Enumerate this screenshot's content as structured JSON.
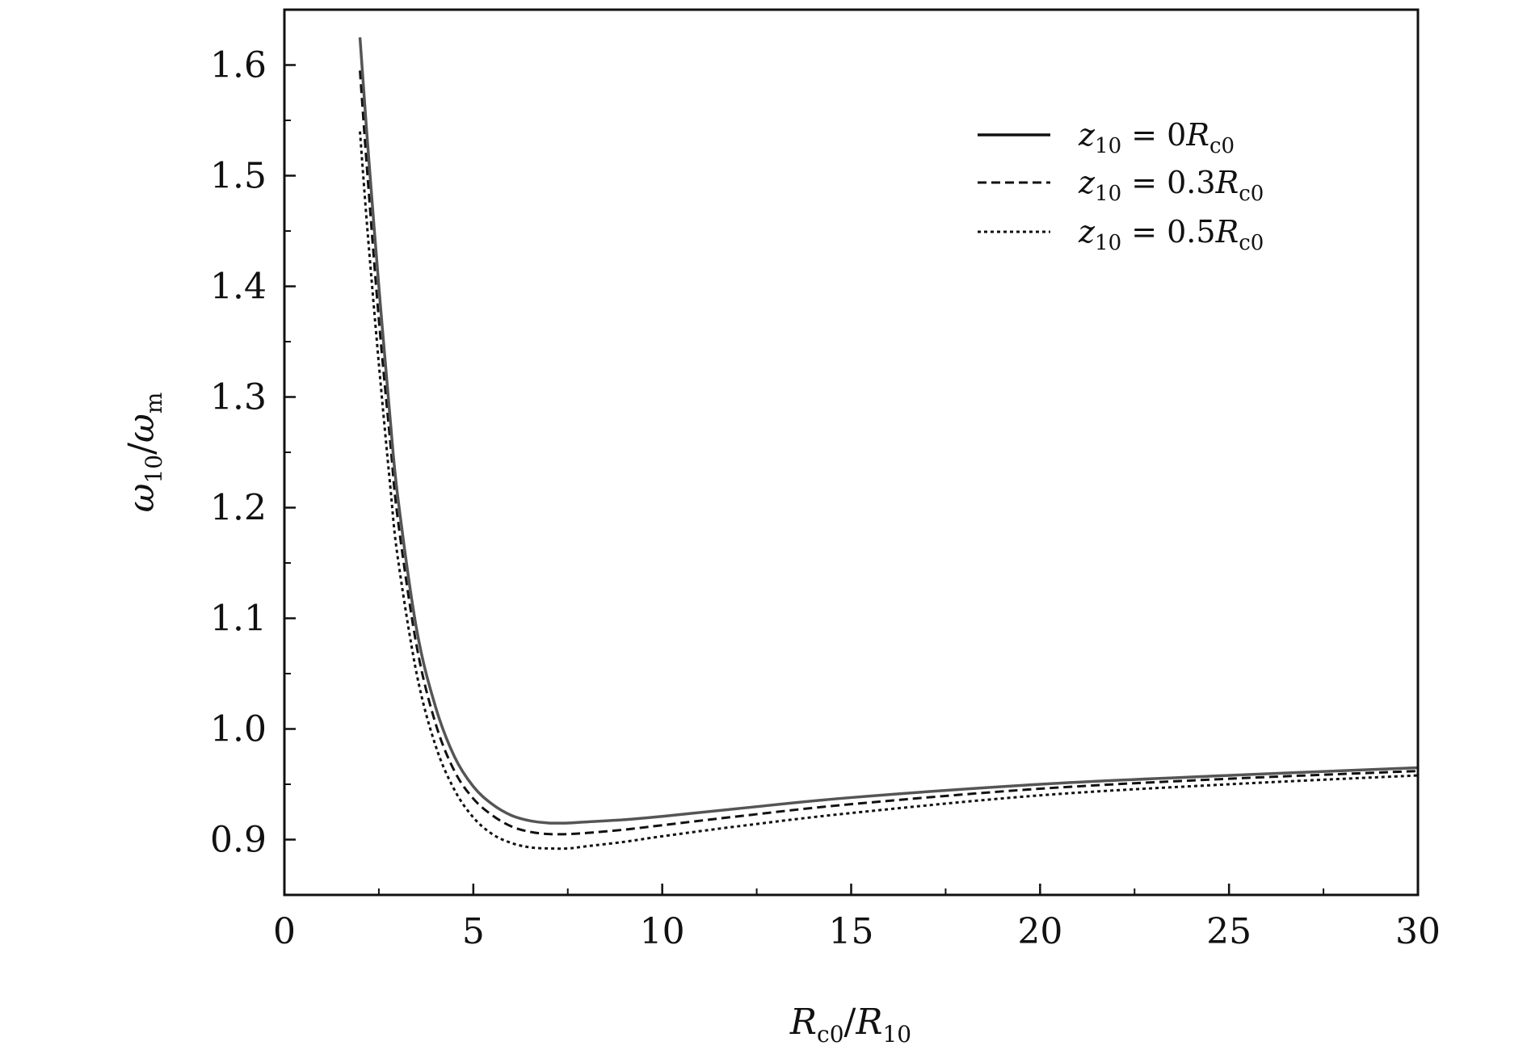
{
  "chart_data": {
    "type": "line",
    "title": "",
    "xlabel": "R_c0/R_10",
    "ylabel": "ω_10/ω_m",
    "xlim": [
      0,
      30
    ],
    "ylim": [
      0.85,
      1.65
    ],
    "x_ticks": [
      0,
      5,
      10,
      15,
      20,
      25,
      30
    ],
    "y_ticks": [
      0.9,
      1.0,
      1.1,
      1.2,
      1.3,
      1.4,
      1.5,
      1.6
    ],
    "x_tick_labels": [
      "0",
      "5",
      "10",
      "15",
      "20",
      "25",
      "30"
    ],
    "y_tick_labels": [
      "0.9",
      "1.0",
      "1.1",
      "1.2",
      "1.3",
      "1.4",
      "1.5",
      "1.6"
    ],
    "grid": false,
    "legend_position": "top-right",
    "colors": {
      "solid": "#555555",
      "dashed": "#111111",
      "dotted": "#111111"
    },
    "series": [
      {
        "name": "z_10 = 0R_c0",
        "line_style": "solid",
        "x": [
          2,
          2.2,
          2.5,
          2.8,
          3,
          3.5,
          4,
          4.5,
          5,
          5.5,
          6,
          6.5,
          7,
          7.5,
          8,
          9,
          10,
          12,
          15,
          20,
          25,
          30
        ],
        "y": [
          1.625,
          1.53,
          1.4,
          1.28,
          1.21,
          1.09,
          1.02,
          0.975,
          0.948,
          0.932,
          0.922,
          0.917,
          0.915,
          0.915,
          0.916,
          0.918,
          0.921,
          0.928,
          0.938,
          0.95,
          0.958,
          0.965
        ]
      },
      {
        "name": "z_10 = 0.3R_c0",
        "line_style": "dashed",
        "x": [
          2,
          2.2,
          2.5,
          2.8,
          3,
          3.5,
          4,
          4.5,
          5,
          5.5,
          6,
          6.5,
          7,
          7.5,
          8,
          9,
          10,
          12,
          15,
          20,
          25,
          30
        ],
        "y": [
          1.595,
          1.5,
          1.37,
          1.26,
          1.19,
          1.075,
          1.005,
          0.962,
          0.937,
          0.922,
          0.912,
          0.907,
          0.905,
          0.905,
          0.906,
          0.909,
          0.913,
          0.921,
          0.932,
          0.946,
          0.955,
          0.962
        ]
      },
      {
        "name": "z_10 = 0.5R_c0",
        "line_style": "dotted",
        "x": [
          2,
          2.2,
          2.5,
          2.8,
          3,
          3.5,
          4,
          4.5,
          5,
          5.5,
          6,
          6.5,
          7,
          7.5,
          8,
          9,
          10,
          12,
          15,
          20,
          25,
          30
        ],
        "y": [
          1.54,
          1.45,
          1.33,
          1.22,
          1.155,
          1.05,
          0.985,
          0.945,
          0.92,
          0.905,
          0.897,
          0.893,
          0.892,
          0.892,
          0.894,
          0.898,
          0.903,
          0.912,
          0.924,
          0.94,
          0.95,
          0.958
        ]
      }
    ]
  }
}
